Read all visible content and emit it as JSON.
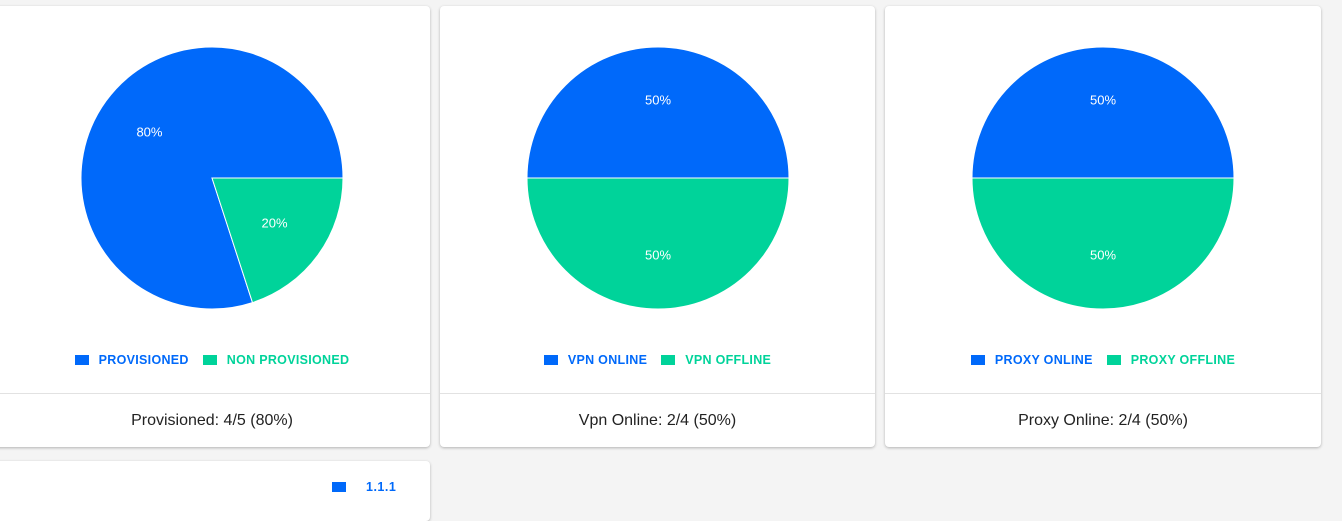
{
  "colors": {
    "blue": "#0069fa",
    "green": "#00d39a"
  },
  "chart_data": [
    {
      "type": "pie",
      "labels": [
        "PROVISIONED",
        "NON PROVISIONED"
      ],
      "values": [
        80,
        20
      ],
      "data_labels": [
        "80%",
        "20%"
      ],
      "colors": [
        "#0069fa",
        "#00d39a"
      ],
      "legend": "bottom",
      "footer": "Provisioned: 4/5 (80%)"
    },
    {
      "type": "pie",
      "labels": [
        "VPN ONLINE",
        "VPN OFFLINE"
      ],
      "values": [
        50,
        50
      ],
      "data_labels": [
        "50%",
        "50%"
      ],
      "colors": [
        "#0069fa",
        "#00d39a"
      ],
      "legend": "bottom",
      "footer": "Vpn Online: 2/4 (50%)"
    },
    {
      "type": "pie",
      "labels": [
        "PROXY ONLINE",
        "PROXY OFFLINE"
      ],
      "values": [
        50,
        50
      ],
      "data_labels": [
        "50%",
        "50%"
      ],
      "colors": [
        "#0069fa",
        "#00d39a"
      ],
      "legend": "bottom",
      "footer": "Proxy Online: 2/4 (50%)"
    }
  ],
  "bottom_card": {
    "legend_label": "1.1.1",
    "legend_color": "#0069fa"
  }
}
